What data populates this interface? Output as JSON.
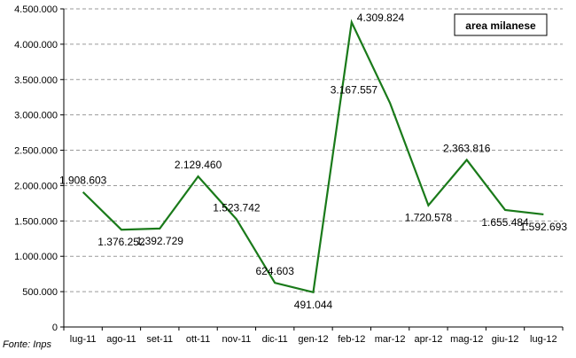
{
  "chart_data": {
    "type": "line",
    "categories": [
      "lug-11",
      "ago-11",
      "set-11",
      "ott-11",
      "nov-11",
      "dic-11",
      "gen-12",
      "feb-12",
      "mar-12",
      "apr-12",
      "mag-12",
      "giu-12",
      "lug-12"
    ],
    "series": [
      {
        "name": "area milanese",
        "values": [
          1908603,
          1376252,
          1392729,
          2129460,
          1523742,
          624603,
          491044,
          4309824,
          3167557,
          1720578,
          2363816,
          1655484,
          1592693
        ],
        "labels": [
          "1.908.603",
          "1.376.252",
          "1.392.729",
          "2.129.460",
          "1.523.742",
          "624.603",
          "491.044",
          "4.309.824",
          "3.167.557",
          "1.720.578",
          "2.363.816",
          "1.655.484",
          "1.592.693"
        ],
        "color": "#1a7a1a"
      }
    ],
    "ylim": [
      0,
      4500000
    ],
    "yticks": [
      0,
      500000,
      1000000,
      1500000,
      2000000,
      2500000,
      3000000,
      3500000,
      4000000,
      4500000
    ],
    "ytick_labels": [
      "0",
      "500.000",
      "1.000.000",
      "1.500.000",
      "2.000.000",
      "2.500.000",
      "3.000.000",
      "3.500.000",
      "4.000.000",
      "4.500.000"
    ],
    "grid": true,
    "legend": "top-right",
    "source": "Fonte: Inps"
  }
}
